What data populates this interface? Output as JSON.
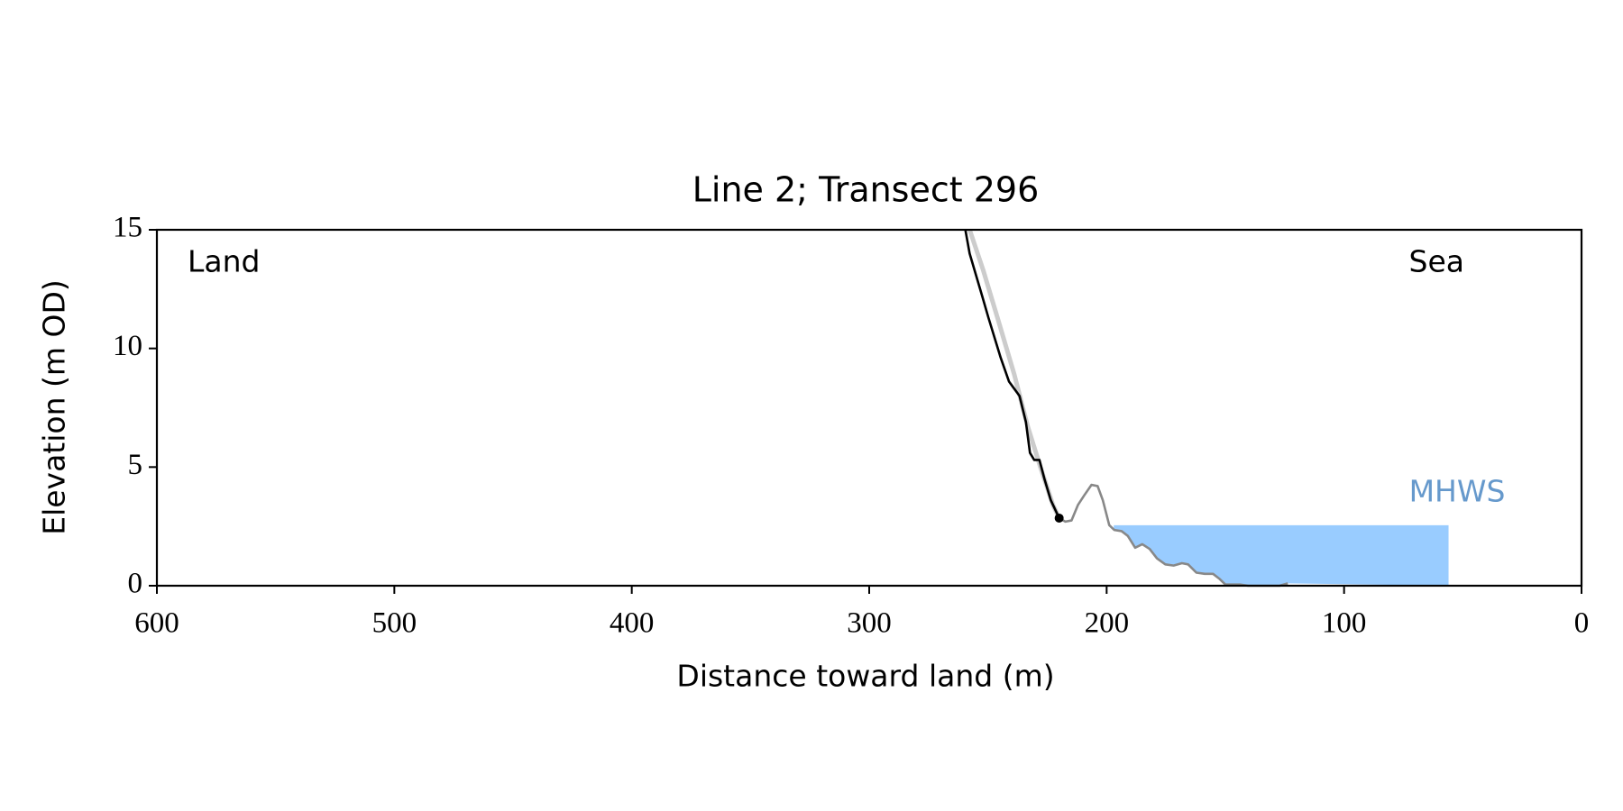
{
  "chart_data": {
    "type": "line",
    "title": "Line 2; Transect 296",
    "x_label": "Distance toward land (m)",
    "y_label": "Elevation (m OD)",
    "xlim": [
      600,
      0
    ],
    "xticks": [
      600,
      500,
      400,
      300,
      200,
      100,
      0
    ],
    "ylim": [
      0,
      15
    ],
    "yticks": [
      0,
      5,
      10,
      15
    ],
    "annotations": [
      "Land",
      "Sea"
    ],
    "series": [
      {
        "color": "#000000",
        "end_marker": true,
        "x": [
          259.5,
          257.7,
          252.4,
          249.8,
          244.6,
          241.1,
          238.9,
          236.7,
          234.0,
          232.3,
          230.5,
          228.3,
          226.2,
          223.5,
          220.0
        ],
        "values": [
          15,
          14.0,
          12.2,
          11.3,
          9.6,
          8.6,
          8.3,
          8.0,
          6.9,
          5.6,
          5.3,
          5.3,
          4.5,
          3.6,
          2.85
        ]
      },
      {
        "color": "#888888",
        "x": [
          220.0,
          217.4,
          214.8,
          212.1,
          209.5,
          206.4,
          203.8,
          201.6,
          198.9,
          196.8,
          193.7,
          191.1,
          188.0,
          185.0,
          181.9,
          178.8,
          175.3,
          171.8,
          168.3,
          165.7,
          162.2,
          158.7,
          155.2,
          152.6,
          150.0,
          143.8,
          140.4,
          127.2,
          123.7
        ],
        "values": [
          2.85,
          2.7,
          2.75,
          3.4,
          3.8,
          4.25,
          4.2,
          3.6,
          2.55,
          2.35,
          2.3,
          2.1,
          1.6,
          1.75,
          1.55,
          1.15,
          0.9,
          0.85,
          0.95,
          0.9,
          0.55,
          0.5,
          0.5,
          0.3,
          0.05,
          0.05,
          0,
          0,
          0.1
        ]
      },
      {
        "color": "#cccccc",
        "x": [
          257.7,
          252.0,
          245.4,
          238.9,
          233.2,
          227.9,
          222.6,
          220.0
        ],
        "values": [
          15,
          13.3,
          11.1,
          8.9,
          6.7,
          5.0,
          3.4,
          2.85
        ]
      }
    ],
    "mhws": {
      "label": "MHWS",
      "value": 2.55,
      "x_range": [
        197,
        56
      ],
      "color": "#99ccff",
      "label_color": "#6699cc",
      "profile_series": 1
    }
  }
}
